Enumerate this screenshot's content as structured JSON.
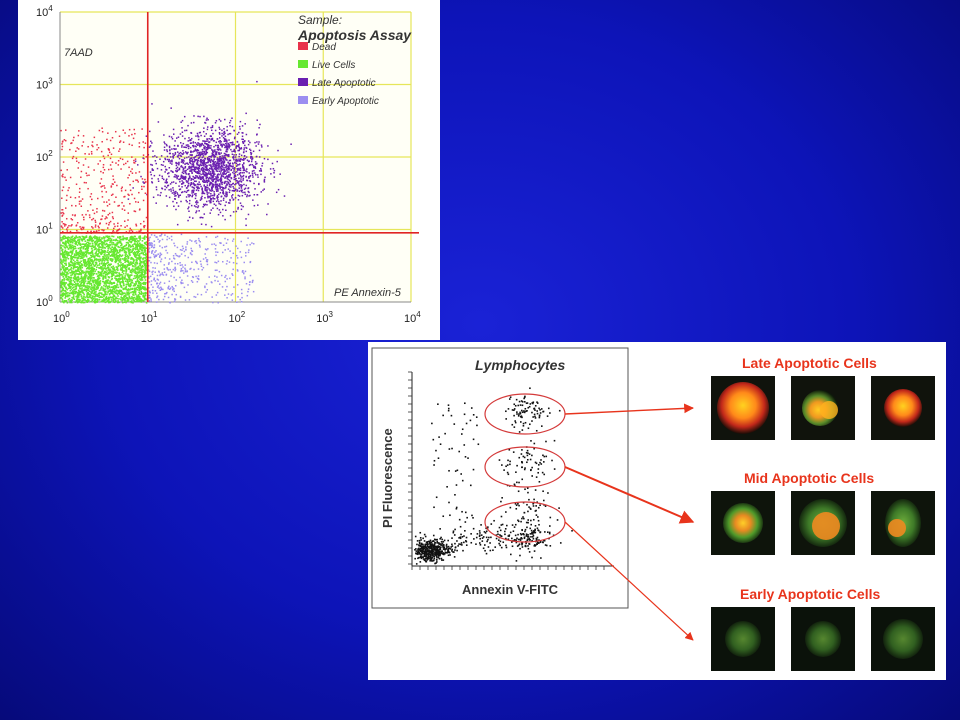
{
  "chart_data": [
    {
      "type": "scatter",
      "sample_label": "Sample:",
      "title": "Apoptosis Assay",
      "ylabel": "7AAD",
      "xlabel": "PE Annexin-5",
      "x_scale": "log",
      "y_scale": "log",
      "xlim": [
        1,
        10000
      ],
      "ylim": [
        1,
        10000
      ],
      "x_ticks": [
        {
          "base": "10",
          "exp": "0",
          "value": 1
        },
        {
          "base": "10",
          "exp": "1",
          "value": 10
        },
        {
          "base": "10",
          "exp": "2",
          "value": 100
        },
        {
          "base": "10",
          "exp": "3",
          "value": 1000
        },
        {
          "base": "10",
          "exp": "4",
          "value": 10000
        }
      ],
      "y_ticks": [
        {
          "base": "10",
          "exp": "0",
          "value": 1
        },
        {
          "base": "10",
          "exp": "1",
          "value": 10
        },
        {
          "base": "10",
          "exp": "2",
          "value": 100
        },
        {
          "base": "10",
          "exp": "3",
          "value": 1000
        },
        {
          "base": "10",
          "exp": "4",
          "value": 10000
        }
      ],
      "grid": true,
      "gate": {
        "x": 10,
        "y": 9
      },
      "legend_position": "top-right",
      "series": [
        {
          "name": "Dead",
          "color": "#e8324a",
          "cluster": {
            "x_range": [
              1,
              10
            ],
            "y_range": [
              9,
              250
            ]
          }
        },
        {
          "name": "Live Cells",
          "color": "#66e830",
          "cluster": {
            "x_range": [
              1,
              10
            ],
            "y_range": [
              1,
              9
            ]
          }
        },
        {
          "name": "Late Apoptotic",
          "color": "#6a1fb0",
          "cluster": {
            "x_center": 50,
            "y_center": 70
          }
        },
        {
          "name": "Early Apoptotic",
          "color": "#9c8ef0",
          "cluster": {
            "x_range": [
              10,
              120
            ],
            "y_range": [
              1,
              9
            ]
          }
        }
      ]
    },
    {
      "type": "scatter",
      "title": "Lymphocytes",
      "xlabel": "Annexin V-FITC",
      "ylabel": "PI Fluorescence",
      "gates": [
        "Late",
        "Mid",
        "Early"
      ]
    }
  ],
  "cell_groups": [
    {
      "label": "Late Apoptotic Cells",
      "stage": "late"
    },
    {
      "label": "Mid Apoptotic Cells",
      "stage": "mid"
    },
    {
      "label": "Early Apoptotic Cells",
      "stage": "early"
    }
  ],
  "colors": {
    "background": "#0d14b8",
    "axis_red": "#e02424",
    "grid_yellow": "#e6e65a",
    "arrow": "#e8341c",
    "title_red": "#e8341c"
  }
}
